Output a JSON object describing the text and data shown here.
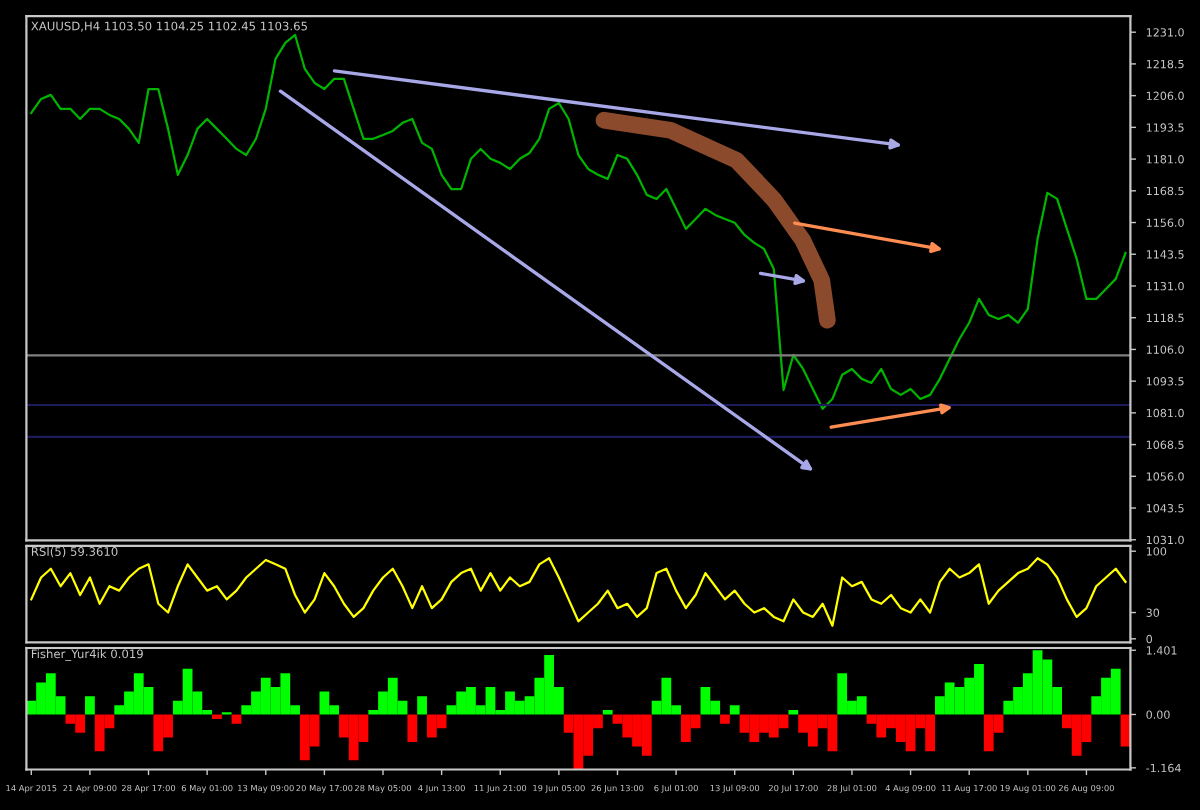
{
  "chart_data": [
    {
      "type": "line",
      "title": "XAUUSD,H4 1103.50 1104.25 1102.45 1103.65",
      "categories": [
        null,
        null,
        null,
        null,
        null,
        null,
        null,
        null,
        null,
        null,
        null,
        null,
        null,
        null,
        null,
        null,
        null,
        null,
        null,
        null,
        null,
        null,
        null,
        null,
        null,
        null,
        null,
        null,
        null,
        null,
        null,
        null,
        null,
        null,
        null,
        null,
        null,
        null,
        null,
        null,
        null,
        null,
        null,
        null,
        null,
        null,
        null,
        null,
        null,
        null,
        null,
        null,
        null,
        null,
        null,
        null,
        null,
        null,
        null,
        null,
        null,
        null,
        null,
        null,
        null,
        null,
        null,
        null,
        null,
        null,
        null,
        null,
        null,
        null,
        null,
        null,
        null,
        null,
        null,
        null,
        null,
        null,
        null,
        null,
        null,
        null,
        null,
        null,
        null,
        null,
        null,
        null,
        null,
        null,
        null,
        null,
        null,
        null,
        null,
        null,
        null,
        null,
        null,
        null,
        null,
        null,
        null,
        null,
        null,
        null,
        null,
        null,
        null
      ],
      "series": [
        {
          "color": "#00b400",
          "values": [
            1199.2,
            1204.7,
            1206.3,
            1200.8,
            1200.8,
            1196.8,
            1200.8,
            1200.8,
            1198.4,
            1196.8,
            1192.9,
            1187.4,
            1208.6,
            1208.6,
            1192.9,
            1174.8,
            1182.6,
            1192.9,
            1196.8,
            1192.9,
            1189.0,
            1185.0,
            1182.6,
            1189.0,
            1200.8,
            1220.5,
            1226.8,
            1229.9,
            1216.5,
            1211.0,
            1208.6,
            1212.6,
            1212.6,
            1200.8,
            1189.0,
            1189.0,
            1190.5,
            1192.1,
            1195.3,
            1196.8,
            1187.4,
            1185.0,
            1174.8,
            1169.2,
            1169.2,
            1181.1,
            1185.0,
            1181.1,
            1179.5,
            1177.1,
            1181.1,
            1183.4,
            1189.0,
            1200.8,
            1203.1,
            1196.8,
            1182.6,
            1177.1,
            1174.8,
            1173.2,
            1182.6,
            1181.1,
            1174.8,
            1166.9,
            1165.3,
            1169.2,
            1161.4,
            1153.5,
            1157.4,
            1161.4,
            1159.0,
            1157.4,
            1155.9,
            1151.1,
            1148.0,
            1145.6,
            1137.7,
            1090.0,
            1103.8,
            1098.3,
            1090.4,
            1082.6,
            1086.5,
            1096.0,
            1098.3,
            1094.4,
            1092.8,
            1098.3,
            1090.4,
            1088.1,
            1090.4,
            1086.5,
            1088.1,
            1094.4,
            1102.3,
            1110.1,
            1116.5,
            1125.9,
            1119.6,
            1118.0,
            1119.6,
            1116.5,
            1122.0,
            1149.5,
            1167.7,
            1165.3,
            1153.5,
            1141.7,
            1125.9,
            1125.9,
            1129.8,
            1133.8,
            1144.0
          ]
        }
      ],
      "ylim": [
        1030.8,
        1237.3
      ],
      "yticks": [
        {
          "value": 1031,
          "label": "1031.0"
        },
        1043.5,
        {
          "value": 1056,
          "label": "1056.0"
        },
        1068.5,
        {
          "value": 1081,
          "label": "1081.0"
        },
        1093.5,
        {
          "value": 1106,
          "label": "1106.0"
        },
        1118.5,
        {
          "value": 1131,
          "label": "1131.0"
        },
        1143.5,
        {
          "value": 1156,
          "label": "1156.0"
        },
        1168.5,
        {
          "value": 1181,
          "label": "1181.0"
        },
        1193.5,
        {
          "value": 1206,
          "label": "1206.0"
        },
        1218.5,
        {
          "value": 1231,
          "label": "1231.0"
        }
      ],
      "ref_lines": [
        {
          "axis": "y",
          "value": 1103.65,
          "color": "#808080"
        },
        {
          "axis": "y",
          "value": 1084.1,
          "color": "#1c1c5c"
        },
        {
          "axis": "y",
          "value": 1071.5,
          "color": "#1c1c5c"
        }
      ],
      "tick_labels": "y",
      "grid": false
    },
    {
      "type": "line",
      "title": "RSI(5) 59.3610",
      "categories": [
        null,
        null,
        null,
        null,
        null,
        null,
        null,
        null,
        null,
        null,
        null,
        null,
        null,
        null,
        null,
        null,
        null,
        null,
        null,
        null,
        null,
        null,
        null,
        null,
        null,
        null,
        null,
        null,
        null,
        null,
        null,
        null,
        null,
        null,
        null,
        null,
        null,
        null,
        null,
        null,
        null,
        null,
        null,
        null,
        null,
        null,
        null,
        null,
        null,
        null,
        null,
        null,
        null,
        null,
        null,
        null,
        null,
        null,
        null,
        null,
        null,
        null,
        null,
        null,
        null,
        null,
        null,
        null,
        null,
        null,
        null,
        null,
        null,
        null,
        null,
        null,
        null,
        null,
        null,
        null,
        null,
        null,
        null,
        null,
        null,
        null,
        null,
        null,
        null,
        null,
        null,
        null,
        null,
        null,
        null,
        null,
        null,
        null,
        null,
        null,
        null,
        null,
        null,
        null,
        null,
        null,
        null,
        null,
        null,
        null,
        null,
        null,
        null
      ],
      "series": [
        {
          "color": "#ffff00",
          "values": [
            45,
            70,
            80,
            60,
            75,
            50,
            70,
            40,
            60,
            55,
            70,
            80,
            85,
            40,
            30,
            60,
            85,
            70,
            55,
            60,
            45,
            55,
            70,
            80,
            90,
            85,
            80,
            50,
            30,
            45,
            75,
            60,
            40,
            25,
            35,
            55,
            70,
            80,
            60,
            35,
            60,
            35,
            45,
            65,
            75,
            80,
            55,
            75,
            55,
            70,
            60,
            65,
            85,
            92,
            70,
            45,
            20,
            30,
            40,
            55,
            35,
            40,
            25,
            35,
            75,
            80,
            55,
            35,
            50,
            75,
            60,
            45,
            55,
            40,
            30,
            35,
            25,
            20,
            45,
            30,
            25,
            40,
            15,
            70,
            60,
            65,
            45,
            40,
            50,
            35,
            30,
            45,
            30,
            65,
            80,
            70,
            75,
            85,
            40,
            55,
            65,
            75,
            80,
            92,
            85,
            70,
            45,
            25,
            35,
            60,
            70,
            80,
            65
          ]
        }
      ],
      "ylim": [
        -4,
        106
      ],
      "yticks": [
        0,
        30,
        100
      ],
      "tick_labels": "y",
      "grid": false
    },
    {
      "type": "bar",
      "title": "Fisher_Yur4ik 0.019",
      "categories": [
        "14 Apr 2015",
        null,
        null,
        null,
        null,
        null,
        "21 Apr 09:00",
        null,
        null,
        null,
        null,
        null,
        "28 Apr 17:00",
        null,
        null,
        null,
        null,
        null,
        "6 May 01:00",
        null,
        null,
        null,
        null,
        null,
        "13 May 09:00",
        null,
        null,
        null,
        null,
        null,
        "20 May 17:00",
        null,
        null,
        null,
        null,
        null,
        "28 May 05:00",
        null,
        null,
        null,
        null,
        null,
        "4 Jun 13:00",
        null,
        null,
        null,
        null,
        null,
        "11 Jun 21:00",
        null,
        null,
        null,
        null,
        null,
        "19 Jun 05:00",
        null,
        null,
        null,
        null,
        null,
        "26 Jun 13:00",
        null,
        null,
        null,
        null,
        null,
        "6 Jul 01:00",
        null,
        null,
        null,
        null,
        null,
        "13 Jul 09:00",
        null,
        null,
        null,
        null,
        null,
        "20 Jul 17:00",
        null,
        null,
        null,
        null,
        null,
        "28 Jul 01:00",
        null,
        null,
        null,
        null,
        null,
        "4 Aug 09:00",
        null,
        null,
        null,
        null,
        null,
        "11 Aug 17:00",
        null,
        null,
        null,
        null,
        null,
        "19 Aug 01:00",
        null,
        null,
        null,
        null,
        null,
        "26 Aug 09:00",
        null,
        null,
        null,
        null
      ],
      "values": [
        0.3,
        0.7,
        0.9,
        0.4,
        -0.2,
        -0.4,
        0.4,
        -0.8,
        -0.3,
        0.2,
        0.5,
        0.9,
        0.6,
        -0.8,
        -0.5,
        0.3,
        1.0,
        0.5,
        0.1,
        -0.1,
        0.05,
        -0.2,
        0.2,
        0.5,
        0.8,
        0.6,
        0.9,
        0.2,
        -1.0,
        -0.7,
        0.5,
        0.2,
        -0.5,
        -1.0,
        -0.6,
        0.1,
        0.5,
        0.8,
        0.3,
        -0.6,
        0.4,
        -0.5,
        -0.3,
        0.2,
        0.5,
        0.6,
        0.2,
        0.6,
        0.1,
        0.5,
        0.3,
        0.4,
        0.8,
        1.3,
        0.6,
        -0.4,
        -1.2,
        -0.9,
        -0.3,
        0.1,
        -0.2,
        -0.5,
        -0.7,
        -0.9,
        0.3,
        0.8,
        0.2,
        -0.6,
        -0.3,
        0.6,
        0.3,
        -0.2,
        0.2,
        -0.4,
        -0.6,
        -0.4,
        -0.5,
        -0.3,
        0.1,
        -0.4,
        -0.7,
        -0.3,
        -0.8,
        0.9,
        0.3,
        0.4,
        -0.2,
        -0.5,
        -0.3,
        -0.6,
        -0.8,
        -0.3,
        -0.8,
        0.4,
        0.7,
        0.6,
        0.8,
        1.1,
        -0.8,
        -0.4,
        0.3,
        0.6,
        0.9,
        1.4,
        1.2,
        0.6,
        -0.3,
        -0.9,
        -0.6,
        0.4,
        0.8,
        1.0,
        -0.7
      ],
      "colors": [
        "#00ff00",
        "#00ff00",
        "#00ff00",
        "#00ff00",
        "#ff0000",
        "#ff0000",
        "#00ff00",
        "#ff0000",
        "#ff0000",
        "#00ff00",
        "#00ff00",
        "#00ff00",
        "#00ff00",
        "#ff0000",
        "#ff0000",
        "#00ff00",
        "#00ff00",
        "#00ff00",
        "#00ff00",
        "#ff0000",
        "#00ff00",
        "#ff0000",
        "#00ff00",
        "#00ff00",
        "#00ff00",
        "#00ff00",
        "#00ff00",
        "#00ff00",
        "#ff0000",
        "#ff0000",
        "#00ff00",
        "#00ff00",
        "#ff0000",
        "#ff0000",
        "#ff0000",
        "#00ff00",
        "#00ff00",
        "#00ff00",
        "#00ff00",
        "#ff0000",
        "#00ff00",
        "#ff0000",
        "#ff0000",
        "#00ff00",
        "#00ff00",
        "#00ff00",
        "#00ff00",
        "#00ff00",
        "#00ff00",
        "#00ff00",
        "#00ff00",
        "#00ff00",
        "#00ff00",
        "#00ff00",
        "#00ff00",
        "#ff0000",
        "#ff0000",
        "#ff0000",
        "#ff0000",
        "#00ff00",
        "#ff0000",
        "#ff0000",
        "#ff0000",
        "#ff0000",
        "#00ff00",
        "#00ff00",
        "#00ff00",
        "#ff0000",
        "#ff0000",
        "#00ff00",
        "#00ff00",
        "#ff0000",
        "#00ff00",
        "#ff0000",
        "#ff0000",
        "#ff0000",
        "#ff0000",
        "#ff0000",
        "#00ff00",
        "#ff0000",
        "#ff0000",
        "#ff0000",
        "#ff0000",
        "#00ff00",
        "#00ff00",
        "#00ff00",
        "#ff0000",
        "#ff0000",
        "#ff0000",
        "#ff0000",
        "#ff0000",
        "#ff0000",
        "#ff0000",
        "#00ff00",
        "#00ff00",
        "#00ff00",
        "#00ff00",
        "#00ff00",
        "#ff0000",
        "#ff0000",
        "#00ff00",
        "#00ff00",
        "#00ff00",
        "#00ff00",
        "#00ff00",
        "#00ff00",
        "#ff0000",
        "#ff0000",
        "#ff0000",
        "#00ff00",
        "#00ff00",
        "#00ff00",
        "#ff0000"
      ],
      "ylim": [
        -1.2,
        1.45
      ],
      "yticks": [
        -1.164,
        {
          "value": 0,
          "label": "0.00"
        },
        1.401
      ],
      "grid": false
    }
  ]
}
